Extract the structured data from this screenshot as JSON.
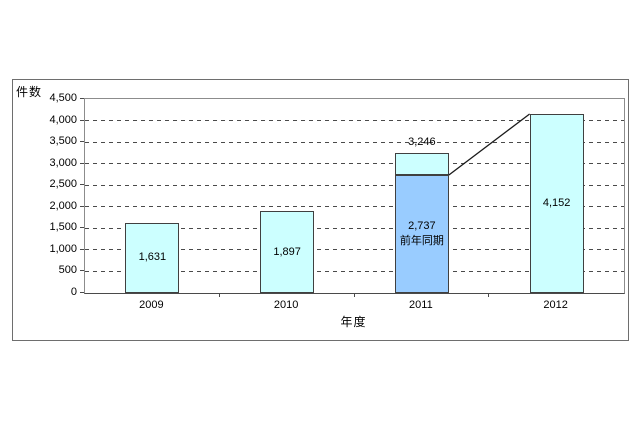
{
  "chart_data": {
    "type": "bar",
    "stacked": true,
    "title": "",
    "xlabel": "年度",
    "ylabel": "件数",
    "categories": [
      "2009",
      "2010",
      "2011",
      "2012"
    ],
    "ylim": [
      0,
      4500
    ],
    "ytick_step": 500,
    "yticks": [
      "0",
      "500",
      "1,000",
      "1,500",
      "2,000",
      "2,500",
      "3,000",
      "3,500",
      "4,000",
      "4,500"
    ],
    "grid": "horizontal-dashed",
    "legend": "none",
    "bars": [
      {
        "category": "2009",
        "total": 1631,
        "segments": [
          {
            "value": 1631,
            "color": "#ccffff",
            "label": "1,631"
          }
        ]
      },
      {
        "category": "2010",
        "total": 1897,
        "segments": [
          {
            "value": 1897,
            "color": "#ccffff",
            "label": "1,897"
          }
        ]
      },
      {
        "category": "2011",
        "total": 3246,
        "total_label": "3,246",
        "segments": [
          {
            "value": 2737,
            "color": "#99ccff",
            "label": "2,737\n前年同期"
          },
          {
            "value": 509,
            "color": "#ccffff",
            "label": ""
          }
        ]
      },
      {
        "category": "2012",
        "total": 4152,
        "segments": [
          {
            "value": 4152,
            "color": "#ccffff",
            "label": "4,152"
          }
        ]
      }
    ],
    "connector_line": {
      "from": {
        "category": "2011",
        "value": 2737,
        "anchor": "bar-right"
      },
      "to": {
        "category": "2012",
        "value": 4152,
        "anchor": "bar-left"
      },
      "color": "#1a1a1a"
    },
    "colors": {
      "bar_fill_light": "#ccffff",
      "bar_fill_blue": "#99ccff",
      "bar_border": "#404040",
      "gridline": "#4a4a4a",
      "plot_border": "#8c8c8c",
      "frame_border": "#6e6e6e",
      "background": "#ffffff"
    }
  }
}
